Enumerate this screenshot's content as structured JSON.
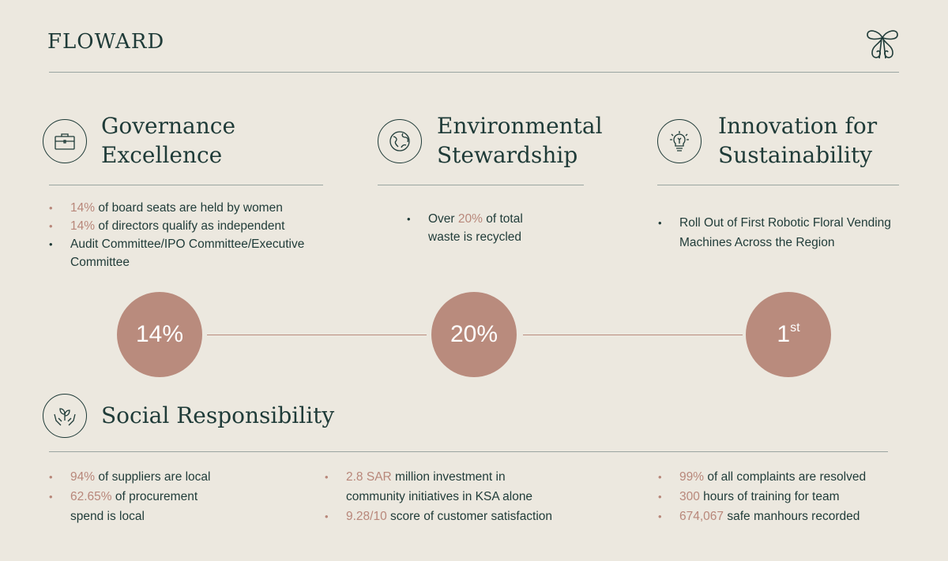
{
  "brand": {
    "logo": "FLOWARD",
    "emblem": "butterfly-monogram-icon"
  },
  "colors": {
    "accent": "#b8877a",
    "circle": "#b98b7d",
    "text": "#1f3b38",
    "background": "#ece8df"
  },
  "governance": {
    "title_line1": "Governance",
    "title_line2": "Excellence",
    "icon": "briefcase-icon",
    "items": [
      {
        "highlight": "14%",
        "text": " of board seats are held by women"
      },
      {
        "highlight": "14%",
        "text": " of directors qualify as independent"
      },
      {
        "highlight": "",
        "text": "Audit Committee/IPO Committee/Executive Committee"
      }
    ],
    "stat": "14%"
  },
  "environment": {
    "title_line1": "Environmental",
    "title_line2": "Stewardship",
    "icon": "globe-leaf-icon",
    "items": [
      {
        "pre": "Over ",
        "highlight": "20%",
        "text": " of total waste is recycled"
      }
    ],
    "stat": "20%"
  },
  "innovation": {
    "title_line1": "Innovation for",
    "title_line2": "Sustainability",
    "icon": "lightbulb-icon",
    "items": [
      {
        "text": "Roll Out of First Robotic Floral Vending Machines Across the Region"
      }
    ],
    "stat": "1",
    "stat_sup": "st"
  },
  "social": {
    "title": "Social Responsibility",
    "icon": "hands-plant-icon",
    "col1": [
      {
        "highlight": "94%",
        "text": " of suppliers are local"
      },
      {
        "highlight": "62.65%",
        "text": " of procurement spend is local"
      }
    ],
    "col2": [
      {
        "highlight": "2.8 SAR",
        "text": " million investment in community initiatives in KSA alone"
      },
      {
        "highlight": "9.28/10",
        "text": " score of customer satisfaction"
      }
    ],
    "col3": [
      {
        "highlight": "99%",
        "text": " of all complaints are resolved"
      },
      {
        "highlight": "300",
        "text": " hours of training for team"
      },
      {
        "highlight": "674,067",
        "text": " safe manhours recorded"
      }
    ]
  }
}
